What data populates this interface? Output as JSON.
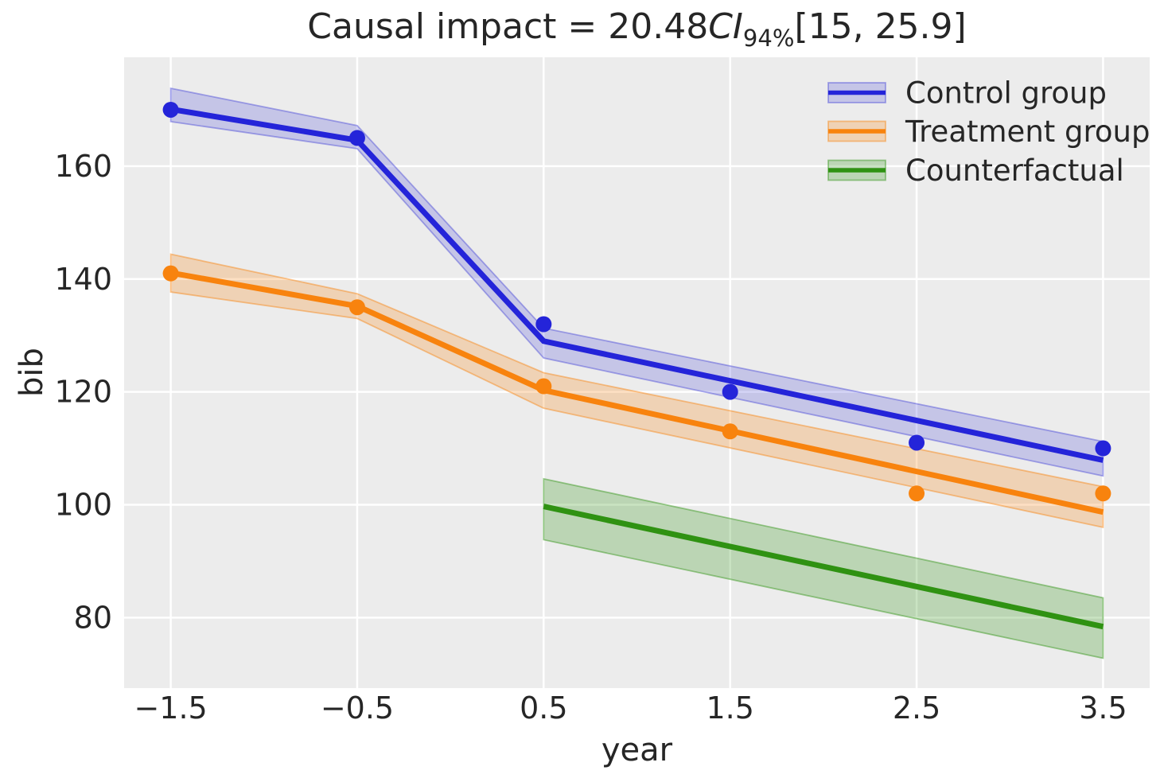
{
  "chart_data": {
    "type": "line",
    "title_text": "Causal impact = 20.48CI94%[15, 25.9]",
    "title_parts": {
      "prefix": "Causal impact = 20.48",
      "ci": "CI",
      "sub": "94%",
      "interval": "[15, 25.9]"
    },
    "xlabel": "year",
    "ylabel": "bib",
    "xlim": [
      -1.75,
      3.75
    ],
    "ylim": [
      67.5,
      179.3
    ],
    "grid": true,
    "legend_position": "upper right",
    "legend_frame": false,
    "background_color": "#ececec",
    "grid_color": "#ffffff",
    "text_color": "#262626",
    "xticks": {
      "values": [
        -1.5,
        -0.5,
        0.5,
        1.5,
        2.5,
        3.5
      ],
      "labels": [
        "−1.5",
        "−0.5",
        "0.5",
        "1.5",
        "2.5",
        "3.5"
      ]
    },
    "yticks": {
      "values": [
        80,
        100,
        120,
        140,
        160
      ],
      "labels": [
        "80",
        "100",
        "120",
        "140",
        "160"
      ]
    },
    "series": [
      {
        "name": "Control group",
        "color": "#2424d9",
        "band_fill": "rgba(60,60,215,0.22)",
        "band_edge": "rgba(60,60,215,0.42)",
        "trend": {
          "x": [
            -1.5,
            -0.5,
            0.5,
            3.5
          ],
          "y": [
            170.1,
            164.6,
            129.0,
            107.9
          ]
        },
        "band_upper": [
          173.8,
          167.2,
          131.3,
          111.2
        ],
        "band_lower": [
          167.9,
          163.1,
          126.0,
          105.1
        ],
        "points": {
          "x": [
            -1.5,
            -0.5,
            0.5,
            1.5,
            2.5,
            3.5
          ],
          "y": [
            170,
            165,
            132,
            120,
            111,
            110
          ]
        }
      },
      {
        "name": "Treatment group",
        "color": "#f8830e",
        "band_fill": "rgba(248,131,14,0.25)",
        "band_edge": "rgba(248,131,14,0.45)",
        "trend": {
          "x": [
            -1.5,
            -0.5,
            0.5,
            3.5
          ],
          "y": [
            141.1,
            135.2,
            120.3,
            98.7
          ]
        },
        "band_upper": [
          144.4,
          137.4,
          123.4,
          103.2
        ],
        "band_lower": [
          137.7,
          133.0,
          117.1,
          96.0
        ],
        "points": {
          "x": [
            -1.5,
            -0.5,
            0.5,
            1.5,
            2.5,
            3.5
          ],
          "y": [
            141,
            135,
            121,
            113,
            102,
            102
          ]
        }
      },
      {
        "name": "Counterfactual",
        "color": "#2f9212",
        "band_fill": "rgba(47,146,18,0.26)",
        "band_edge": "rgba(47,146,18,0.45)",
        "trend": {
          "x": [
            0.5,
            3.5
          ],
          "y": [
            99.7,
            78.4
          ]
        },
        "band_upper": [
          104.6,
          83.5
        ],
        "band_lower": [
          93.8,
          72.8
        ],
        "points": null
      }
    ]
  }
}
